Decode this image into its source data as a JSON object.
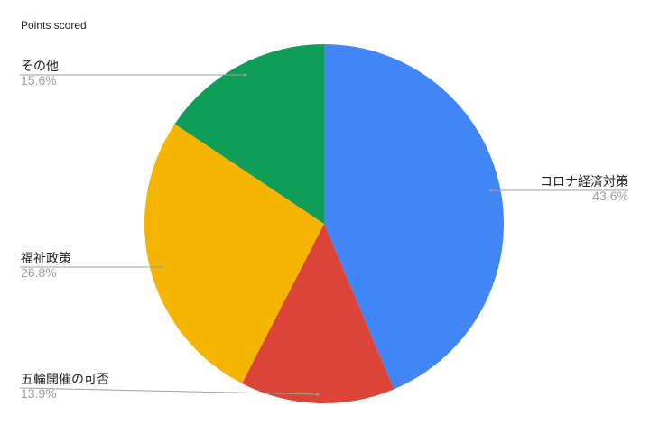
{
  "chart_data": {
    "type": "pie",
    "title": "Points scored",
    "start_angle": "top, clockwise",
    "slices": [
      {
        "label": "コロナ経済対策",
        "value": 43.6,
        "pct_label": "43.6%",
        "color": "#4285F4"
      },
      {
        "label": "五輪開催の可否",
        "value": 13.9,
        "pct_label": "13.9%",
        "color": "#DB4437"
      },
      {
        "label": "福祉政策",
        "value": 26.8,
        "pct_label": "26.8%",
        "color": "#F4B400"
      },
      {
        "label": "その他",
        "value": 15.6,
        "pct_label": "15.6%",
        "color": "#0F9D58"
      }
    ],
    "legend": "labels with leader lines"
  }
}
